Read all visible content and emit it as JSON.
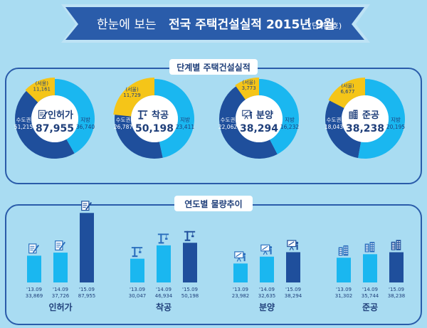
{
  "header": {
    "prefix": "한눈에 보는",
    "title": "전국 주택건설실적 2015년 9월",
    "unit": "(단위: 호)"
  },
  "colors": {
    "background": "#a9dcf2",
    "banner": "#2a5caa",
    "capital_region": "#1f4f9c",
    "provinces": "#1ab7f0",
    "seoul": "#f5c518",
    "bar_2013": "#1ab7f0",
    "bar_2014": "#1ab7f0",
    "bar_2015": "#1f4f9c"
  },
  "section1": {
    "title": "단계별 주택건설실적"
  },
  "section2": {
    "title": "연도별 물량추이"
  },
  "chart_data": [
    {
      "type": "pie",
      "labels": [
        "수도권",
        "지방",
        "(서울)"
      ],
      "groups": [
        {
          "name": "인허가",
          "total": "87,955",
          "capital": "51,215",
          "provinces": "36,740",
          "seoul": "11,161",
          "values": {
            "capital": 51215,
            "provinces": 36740,
            "seoul": 11161
          },
          "icon": "permit-document-icon"
        },
        {
          "name": "착공",
          "total": "50,198",
          "capital": "26,787",
          "provinces": "23,411",
          "seoul": "11,729",
          "values": {
            "capital": 26787,
            "provinces": 23411,
            "seoul": 11729
          },
          "icon": "crane-icon"
        },
        {
          "name": "분양",
          "total": "38,294",
          "capital": "22,062",
          "provinces": "16,232",
          "seoul": "3,773",
          "values": {
            "capital": 22062,
            "provinces": 16232,
            "seoul": 3773
          },
          "icon": "presentation-board-icon"
        },
        {
          "name": "준공",
          "total": "38,238",
          "capital": "18,043",
          "provinces": "20,195",
          "seoul": "6,677",
          "values": {
            "capital": 18043,
            "provinces": 20195,
            "seoul": 6677
          },
          "icon": "completed-building-icon"
        }
      ]
    },
    {
      "type": "bar",
      "categories": [
        "'13.09",
        "'14.09",
        "'15.09"
      ],
      "ylim": [
        0,
        90000
      ],
      "groups": [
        {
          "name": "인허가",
          "values": [
            33869,
            37726,
            87955
          ],
          "labels": [
            "33,869",
            "37,726",
            "87,955"
          ]
        },
        {
          "name": "착공",
          "values": [
            30047,
            46934,
            50198
          ],
          "labels": [
            "30,047",
            "46,934",
            "50,198"
          ]
        },
        {
          "name": "분양",
          "values": [
            23982,
            32635,
            38294
          ],
          "labels": [
            "23,982",
            "32,635",
            "38,294"
          ]
        },
        {
          "name": "준공",
          "values": [
            31302,
            35744,
            38238
          ],
          "labels": [
            "31,302",
            "35,744",
            "38,238"
          ]
        }
      ]
    }
  ]
}
